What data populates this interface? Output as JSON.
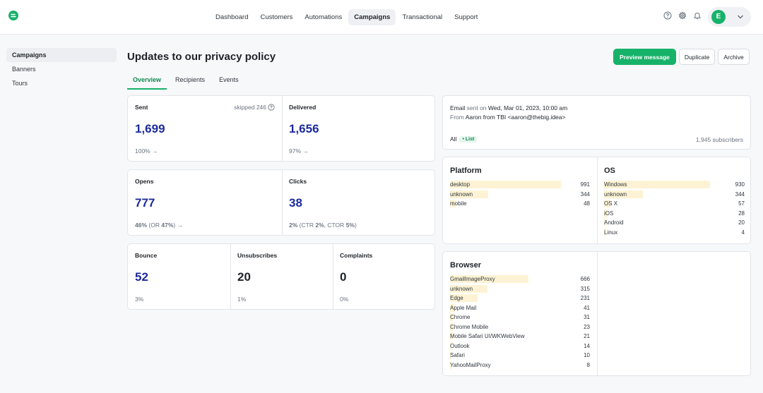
{
  "nav": {
    "items": [
      "Dashboard",
      "Customers",
      "Automations",
      "Campaigns",
      "Transactional",
      "Support"
    ],
    "active": "Campaigns"
  },
  "user": {
    "initial": "E"
  },
  "sidebar": {
    "items": [
      "Campaigns",
      "Banners",
      "Tours"
    ]
  },
  "page": {
    "title": "Updates to our privacy policy",
    "actions": {
      "preview": "Preview message",
      "duplicate": "Duplicate",
      "archive": "Archive"
    },
    "tabs": [
      "Overview",
      "Recipients",
      "Events"
    ]
  },
  "metrics": {
    "sent": {
      "label": "Sent",
      "value": "1,699",
      "sub": "100% →",
      "skipped": "skipped 246"
    },
    "delivered": {
      "label": "Delivered",
      "value": "1,656",
      "sub": "97% →"
    },
    "opens": {
      "label": "Opens",
      "value": "777",
      "sub_pct": "46%",
      "sub_or_pre": "(OR",
      "sub_or": "47%",
      "sub_or_post": ") →"
    },
    "clicks": {
      "label": "Clicks",
      "value": "38",
      "sub_pct": "2%",
      "sub_ctr_pre": "(CTR",
      "sub_ctr": "2%",
      "sub_ctor_pre": ", CTOR",
      "sub_ctor": "5%",
      "sub_post": ")"
    },
    "bounce": {
      "label": "Bounce",
      "value": "52",
      "sub": "3%"
    },
    "unsubscribes": {
      "label": "Unsubscribes",
      "value": "20",
      "sub": "1%"
    },
    "complaints": {
      "label": "Complaints",
      "value": "0",
      "sub": "0%"
    }
  },
  "email": {
    "label": "Email",
    "sent_on_label": "sent on",
    "sent_on": "Wed, Mar 01, 2023, 10:00 am",
    "from_label": "From",
    "from": "Aaron from TBI <aaron@thebig.idea>",
    "segment": "All",
    "segment_badge": "• List",
    "subscribers": "1,945 subscribers"
  },
  "platform": {
    "title": "Platform",
    "max": 991,
    "rows": [
      {
        "name": "desktop",
        "count": 991
      },
      {
        "name": "unknown",
        "count": 344
      },
      {
        "name": "mobile",
        "count": 48
      }
    ]
  },
  "os": {
    "title": "OS",
    "max": 930,
    "rows": [
      {
        "name": "Windows",
        "count": 930
      },
      {
        "name": "unknown",
        "count": 344
      },
      {
        "name": "OS X",
        "count": 57
      },
      {
        "name": "iOS",
        "count": 28
      },
      {
        "name": "Android",
        "count": 20
      },
      {
        "name": "Linux",
        "count": 4
      }
    ]
  },
  "browser": {
    "title": "Browser",
    "max": 666,
    "rows": [
      {
        "name": "GmailImageProxy",
        "count": 666
      },
      {
        "name": "unknown",
        "count": 315
      },
      {
        "name": "Edge",
        "count": 231
      },
      {
        "name": "Apple Mail",
        "count": 41
      },
      {
        "name": "Chrome",
        "count": 31
      },
      {
        "name": "Chrome Mobile",
        "count": 23
      },
      {
        "name": "Mobile Safari UI/WKWebView",
        "count": 21
      },
      {
        "name": "Outlook",
        "count": 14
      },
      {
        "name": "Safari",
        "count": 10
      },
      {
        "name": "YahooMailProxy",
        "count": 8
      }
    ]
  },
  "colors": {
    "accent": "#17b26a",
    "metric": "#1c2a9c",
    "bar": "#fdf3d4"
  }
}
